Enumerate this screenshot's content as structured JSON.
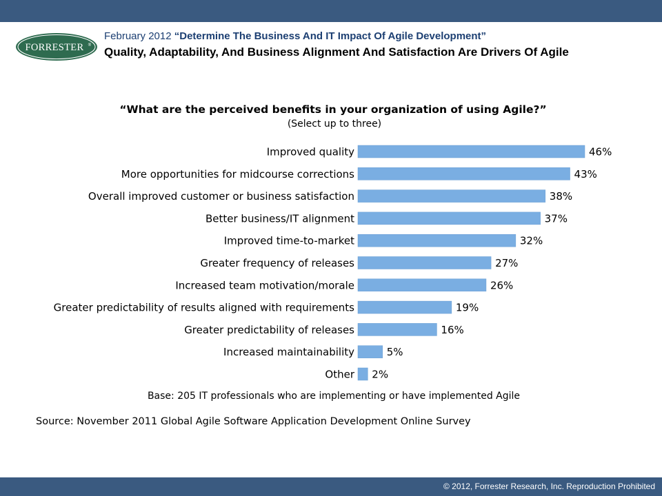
{
  "header": {
    "date": "February 2012",
    "report_title": "“Determine The Business And IT Impact Of Agile Development”",
    "subtitle": "Quality, Adaptability, And Business Alignment And Satisfaction Are Drivers Of Agile",
    "logo_text": "FORRESTER",
    "logo_mark": "®"
  },
  "colors": {
    "bar": "#7aaee2",
    "bar_stroke": "#6b9fd4",
    "bar_top_band": "#3a5a80",
    "logo_green": "#2e6b4f",
    "title_blue": "#1c3f72"
  },
  "chart_data": {
    "type": "bar",
    "orientation": "horizontal",
    "title": "“What are the perceived benefits in your organization of using Agile?”",
    "subtitle": "(Select up to three)",
    "unit": "%",
    "xlim": [
      0,
      46
    ],
    "grid": false,
    "categories": [
      "Improved quality",
      "More opportunities for midcourse corrections",
      "Overall improved customer or business satisfaction",
      "Better business/IT alignment",
      "Improved time-to-market",
      "Greater frequency of releases",
      "Increased team motivation/morale",
      "Greater predictability of results aligned with requirements",
      "Greater predictability of releases",
      "Increased maintainability",
      "Other"
    ],
    "values": [
      46,
      43,
      38,
      37,
      32,
      27,
      26,
      19,
      16,
      5,
      2
    ],
    "labels": [
      "46%",
      "43%",
      "38%",
      "37%",
      "32%",
      "27%",
      "26%",
      "19%",
      "16%",
      "5%",
      "2%"
    ]
  },
  "notes": {
    "base": "Base: 205 IT professionals who are implementing or have implemented Agile",
    "source": "Source: November 2011 Global Agile Software Application Development Online Survey"
  },
  "footer": {
    "copyright": "© 2012, Forrester Research, Inc. Reproduction Prohibited"
  }
}
